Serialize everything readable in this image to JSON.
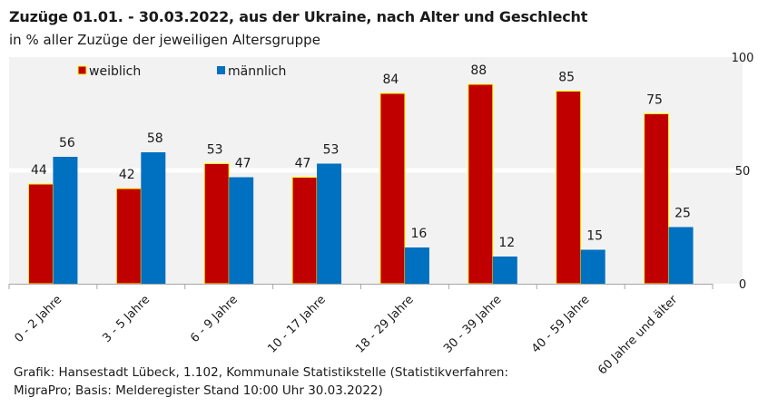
{
  "chart_data": {
    "type": "bar",
    "title": "Zuzüge 01.01. - 30.03.2022, aus der Ukraine, nach Alter und Geschlecht",
    "subtitle": "in % aller Zuzüge der jeweiligen Altersgruppe",
    "categories": [
      "0 - 2 Jahre",
      "3 - 5 Jahre",
      "6 - 9 Jahre",
      "10 - 17 Jahre",
      "18 - 29 Jahre",
      "30 - 39 Jahre",
      "40 - 59 Jahre",
      "60 Jahre und älter"
    ],
    "series": [
      {
        "name": "weiblich",
        "color": "#c00000",
        "border": "#ffff00",
        "values": [
          44,
          42,
          53,
          47,
          84,
          88,
          85,
          75
        ]
      },
      {
        "name": "männlich",
        "color": "#0070c0",
        "values": [
          56,
          58,
          47,
          53,
          16,
          12,
          15,
          25
        ]
      }
    ],
    "ylim": [
      0,
      100
    ],
    "yticks": [
      0,
      50,
      100
    ],
    "yaxis_side": "right",
    "xlabel": "",
    "ylabel": "",
    "grid": true,
    "legend": "top-left",
    "data_labels": true,
    "plot_background": "#f2f2f2"
  },
  "footer": {
    "line1": "Grafik: Hansestadt Lübeck, 1.102, Kommunale Statistikstelle (Statistikverfahren:",
    "line2": "MigraPro; Basis: Melderegister Stand 10:00 Uhr 30.03.2022)"
  }
}
